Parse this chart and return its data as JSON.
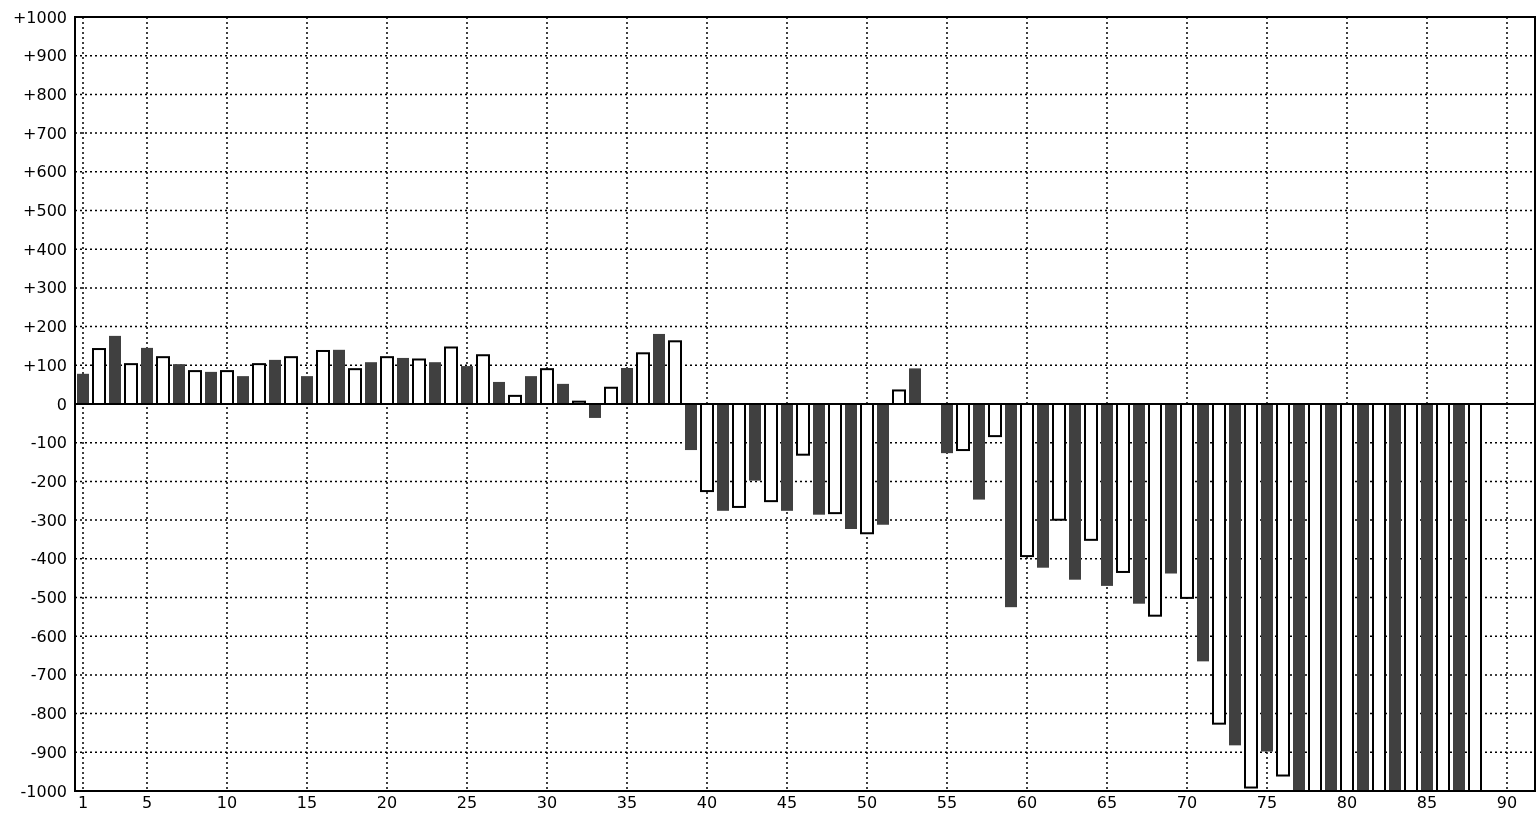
{
  "chart_data": {
    "type": "bar",
    "x": [
      1,
      2,
      3,
      4,
      5,
      6,
      7,
      8,
      9,
      10,
      11,
      12,
      13,
      14,
      15,
      16,
      17,
      18,
      19,
      20,
      21,
      22,
      23,
      24,
      25,
      26,
      27,
      28,
      29,
      30,
      31,
      32,
      33,
      34,
      35,
      36,
      37,
      38,
      39,
      40,
      41,
      42,
      43,
      44,
      45,
      46,
      47,
      48,
      49,
      50,
      51,
      52,
      53,
      54,
      55,
      56,
      57,
      58,
      59,
      60,
      61,
      62,
      63,
      64,
      65,
      66,
      67,
      68,
      69,
      70,
      71,
      72,
      73,
      74,
      75,
      76,
      77,
      78,
      79,
      80,
      81,
      82,
      83,
      84,
      85,
      86,
      87,
      88
    ],
    "values": [
      78,
      142,
      176,
      103,
      145,
      121,
      103,
      85,
      83,
      85,
      72,
      103,
      114,
      121,
      72,
      137,
      140,
      90,
      108,
      121,
      119,
      115,
      108,
      146,
      98,
      126,
      57,
      21,
      72,
      90,
      52,
      6,
      -36,
      42,
      93,
      131,
      181,
      162,
      -119,
      -225,
      -276,
      -266,
      -198,
      -251,
      -276,
      -131,
      -286,
      -282,
      -323,
      -334,
      -312,
      35,
      92,
      0,
      -127,
      -119,
      -247,
      -83,
      -525,
      -393,
      -423,
      -299,
      -454,
      -351,
      -470,
      -434,
      -516,
      -547,
      -438,
      -501,
      -665,
      -826,
      -882,
      -991,
      -898,
      -960,
      -1000,
      -1000,
      -1000,
      -1000,
      -1000,
      -1000,
      -1000,
      -1000,
      -1000,
      -1000,
      -1000,
      -1000
    ],
    "colors": [
      "#404040",
      "#ffffff",
      "#404040",
      "#ffffff",
      "#404040",
      "#ffffff",
      "#404040",
      "#ffffff",
      "#404040",
      "#ffffff",
      "#404040",
      "#ffffff",
      "#404040",
      "#ffffff",
      "#404040",
      "#ffffff",
      "#404040",
      "#ffffff",
      "#404040",
      "#ffffff",
      "#404040",
      "#ffffff",
      "#404040",
      "#ffffff",
      "#404040",
      "#ffffff",
      "#404040",
      "#ffffff",
      "#404040",
      "#ffffff",
      "#404040",
      "#ffffff",
      "#404040",
      "#ffffff",
      "#404040",
      "#ffffff",
      "#404040",
      "#ffffff",
      "#404040",
      "#ffffff",
      "#404040",
      "#ffffff",
      "#404040",
      "#ffffff",
      "#404040",
      "#ffffff",
      "#404040",
      "#ffffff",
      "#404040",
      "#ffffff",
      "#404040",
      "#ffffff",
      "#404040",
      "#ffffff",
      "#404040",
      "#ffffff",
      "#404040",
      "#ffffff",
      "#404040",
      "#ffffff",
      "#404040",
      "#ffffff",
      "#404040",
      "#ffffff",
      "#404040",
      "#ffffff",
      "#404040",
      "#ffffff",
      "#404040",
      "#ffffff",
      "#404040",
      "#ffffff",
      "#404040",
      "#ffffff",
      "#404040",
      "#ffffff",
      "#404040",
      "#ffffff",
      "#404040",
      "#ffffff",
      "#404040",
      "#ffffff",
      "#404040",
      "#ffffff",
      "#404040",
      "#ffffff",
      "#404040",
      "#ffffff"
    ],
    "xlim": [
      0.5,
      91.75
    ],
    "xticks": [
      1,
      5,
      10,
      15,
      20,
      25,
      30,
      35,
      40,
      45,
      50,
      55,
      60,
      65,
      70,
      75,
      80,
      85,
      90
    ],
    "ylim": [
      -1000,
      1000
    ],
    "yticks": [
      {
        "value": -1000,
        "label": "-1000"
      },
      {
        "value": -900,
        "label": "-900"
      },
      {
        "value": -800,
        "label": "-800"
      },
      {
        "value": -700,
        "label": "-700"
      },
      {
        "value": -600,
        "label": "-600"
      },
      {
        "value": -500,
        "label": "-500"
      },
      {
        "value": -400,
        "label": "-400"
      },
      {
        "value": -300,
        "label": "-300"
      },
      {
        "value": -200,
        "label": "-200"
      },
      {
        "value": -100,
        "label": "-100"
      },
      0,
      {
        "value": 100,
        "label": "+100"
      },
      {
        "value": 200,
        "label": "+200"
      },
      {
        "value": 300,
        "label": "+300"
      },
      {
        "value": 400,
        "label": "+400"
      },
      {
        "value": 500,
        "label": "+500"
      },
      {
        "value": 600,
        "label": "+600"
      },
      {
        "value": 700,
        "label": "+700"
      },
      {
        "value": 800,
        "label": "+800"
      },
      {
        "value": 900,
        "label": "+900"
      },
      {
        "value": 1000,
        "label": "+1000"
      }
    ],
    "grid": true
  }
}
